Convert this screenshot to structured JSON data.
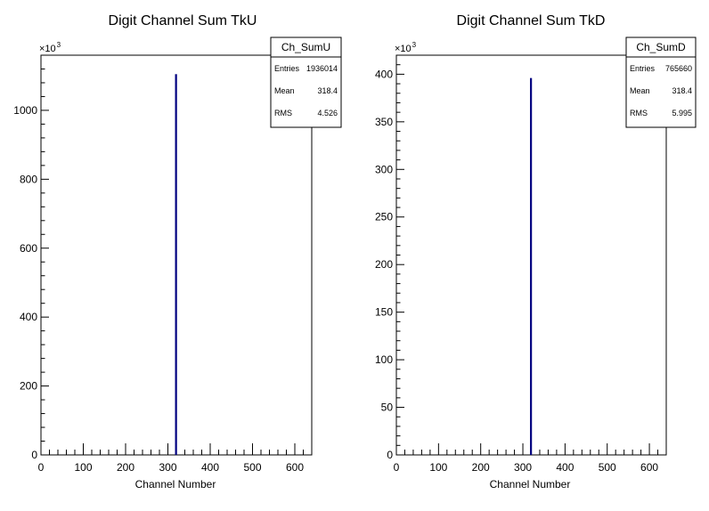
{
  "chart_data": [
    {
      "type": "bar",
      "title": "Digit Channel Sum TkU",
      "xlabel": "Channel Number",
      "ylabel": "",
      "xlim": [
        0,
        640
      ],
      "ylim": [
        0,
        1160
      ],
      "y_multiplier": "×10",
      "y_multiplier_exp": "3",
      "x_ticks": [
        0,
        100,
        200,
        300,
        400,
        500,
        600
      ],
      "y_ticks": [
        0,
        200,
        400,
        600,
        800,
        1000
      ],
      "series": [
        {
          "x": [
            319
          ],
          "values": [
            1105
          ],
          "color": "#000080"
        }
      ],
      "stats": {
        "name": "Ch_SumU",
        "rows": [
          {
            "label": "Entries",
            "value": "1936014"
          },
          {
            "label": "Mean",
            "value": "318.4"
          },
          {
            "label": "RMS",
            "value": "4.526"
          }
        ]
      }
    },
    {
      "type": "bar",
      "title": "Digit Channel Sum TkD",
      "xlabel": "Channel Number",
      "ylabel": "",
      "xlim": [
        0,
        640
      ],
      "ylim": [
        0,
        420
      ],
      "y_multiplier": "×10",
      "y_multiplier_exp": "3",
      "x_ticks": [
        0,
        100,
        200,
        300,
        400,
        500,
        600
      ],
      "y_ticks": [
        0,
        50,
        100,
        150,
        200,
        250,
        300,
        350,
        400
      ],
      "series": [
        {
          "x": [
            319
          ],
          "values": [
            396
          ],
          "color": "#000080"
        }
      ],
      "stats": {
        "name": "Ch_SumD",
        "rows": [
          {
            "label": "Entries",
            "value": "765660"
          },
          {
            "label": "Mean",
            "value": "318.4"
          },
          {
            "label": "RMS",
            "value": "5.995"
          }
        ]
      }
    }
  ]
}
